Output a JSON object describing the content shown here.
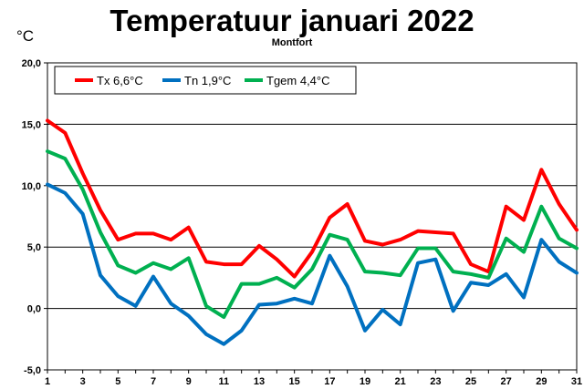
{
  "chart_data": {
    "type": "line",
    "title": "Temperatuur januari 2022",
    "subtitle": "Montfort",
    "unit_label": "°C",
    "xlabel": "",
    "ylabel": "",
    "x": [
      1,
      2,
      3,
      4,
      5,
      6,
      7,
      8,
      9,
      10,
      11,
      12,
      13,
      14,
      15,
      16,
      17,
      18,
      19,
      20,
      21,
      22,
      23,
      24,
      25,
      26,
      27,
      28,
      29,
      30,
      31
    ],
    "x_ticks": [
      "1",
      "3",
      "5",
      "7",
      "9",
      "11",
      "13",
      "15",
      "17",
      "19",
      "21",
      "23",
      "25",
      "27",
      "29",
      "31"
    ],
    "y_ticks": [
      "20,0",
      "15,0",
      "10,0",
      "5,0",
      "0,0",
      "-5,0"
    ],
    "ylim": [
      -5,
      20
    ],
    "grid": true,
    "legend_position": "top-left",
    "series": [
      {
        "name": "Tx 6,6°C",
        "color": "#ff0000",
        "values": [
          15.3,
          14.3,
          11.0,
          8.0,
          5.6,
          6.1,
          6.1,
          5.6,
          6.6,
          3.8,
          3.6,
          3.6,
          5.1,
          4.0,
          2.6,
          4.6,
          7.4,
          8.5,
          5.5,
          5.2,
          5.6,
          6.3,
          6.2,
          6.1,
          3.6,
          3.0,
          8.3,
          7.2,
          11.3,
          8.5,
          6.4
        ]
      },
      {
        "name": "Tn 1,9°C",
        "color": "#0070c0",
        "values": [
          10.1,
          9.4,
          7.7,
          2.7,
          1.0,
          0.2,
          2.6,
          0.4,
          -0.6,
          -2.1,
          -2.9,
          -1.8,
          0.3,
          0.4,
          0.8,
          0.4,
          4.3,
          1.8,
          -1.8,
          -0.1,
          -1.3,
          3.7,
          4.0,
          -0.2,
          2.1,
          1.9,
          2.8,
          0.9,
          5.6,
          3.8,
          2.9
        ]
      },
      {
        "name": "Tgem 4,4°C",
        "color": "#00b050",
        "values": [
          12.8,
          12.2,
          9.7,
          6.2,
          3.5,
          2.9,
          3.7,
          3.2,
          4.1,
          0.2,
          -0.7,
          2.0,
          2.0,
          2.5,
          1.7,
          3.2,
          6.0,
          5.6,
          3.0,
          2.9,
          2.7,
          4.9,
          4.9,
          3.0,
          2.8,
          2.5,
          5.7,
          4.6,
          8.3,
          5.7,
          4.9
        ]
      }
    ]
  }
}
